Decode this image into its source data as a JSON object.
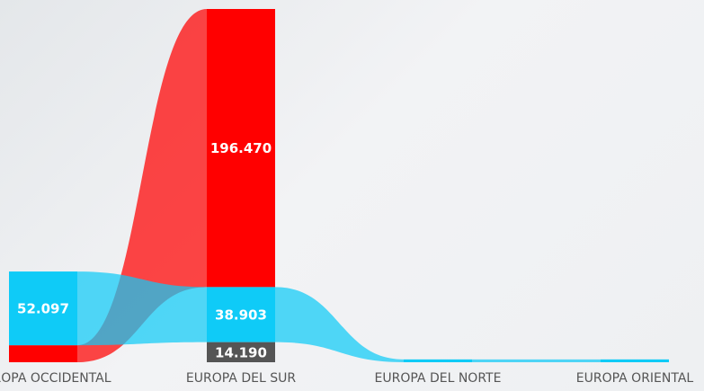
{
  "chart_data": {
    "type": "ribbon",
    "categories": [
      "EUROPA OCCIDENTAL",
      "EUROPA DEL SUR",
      "EUROPA DEL NORTE",
      "EUROPA ORIENTAL"
    ],
    "series": [
      {
        "color": "#ff0000",
        "values": [
          12000,
          196470,
          null,
          null
        ],
        "value_labels": [
          null,
          "196.470",
          null,
          null
        ]
      },
      {
        "color": "#0fcbf7",
        "values": [
          52097,
          38903,
          2000,
          2000
        ],
        "value_labels": [
          "52.097",
          "38.903",
          null,
          null
        ]
      },
      {
        "color": "#555555",
        "values": [
          null,
          14190,
          null,
          null
        ],
        "value_labels": [
          null,
          "14.190",
          null,
          null
        ]
      }
    ]
  }
}
